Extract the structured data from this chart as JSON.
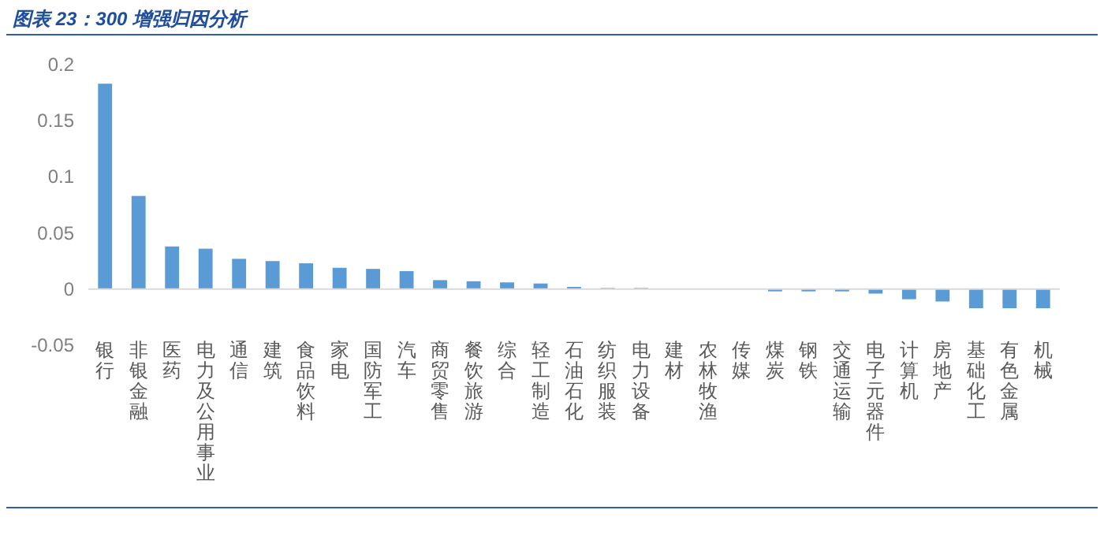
{
  "chart_data": {
    "type": "bar",
    "title": "图表 23：300 增强归因分析",
    "categories": [
      "银行",
      "非银金融",
      "医药",
      "电力及公用事业",
      "通信",
      "建筑",
      "食品饮料",
      "家电",
      "国防军工",
      "汽车",
      "商贸零售",
      "餐饮旅游",
      "综合",
      "轻工制造",
      "石油石化",
      "纺织服装",
      "电力设备",
      "建材",
      "农林牧渔",
      "传媒",
      "煤炭",
      "钢铁",
      "交通运输",
      "电子元器件",
      "计算机",
      "房地产",
      "基础化工",
      "有色金属",
      "机械"
    ],
    "values": [
      0.183,
      0.083,
      0.038,
      0.036,
      0.027,
      0.025,
      0.023,
      0.019,
      0.018,
      0.016,
      0.008,
      0.007,
      0.006,
      0.005,
      0.002,
      0.001,
      0.001,
      0,
      0,
      0,
      -0.002,
      -0.002,
      -0.002,
      -0.004,
      -0.009,
      -0.011,
      -0.017,
      -0.017,
      -0.017
    ],
    "color": "#5b9bd5",
    "ylim": [
      -0.05,
      0.2
    ],
    "yticks": [
      -0.05,
      0,
      0.05,
      0.1,
      0.15,
      0.2
    ]
  }
}
